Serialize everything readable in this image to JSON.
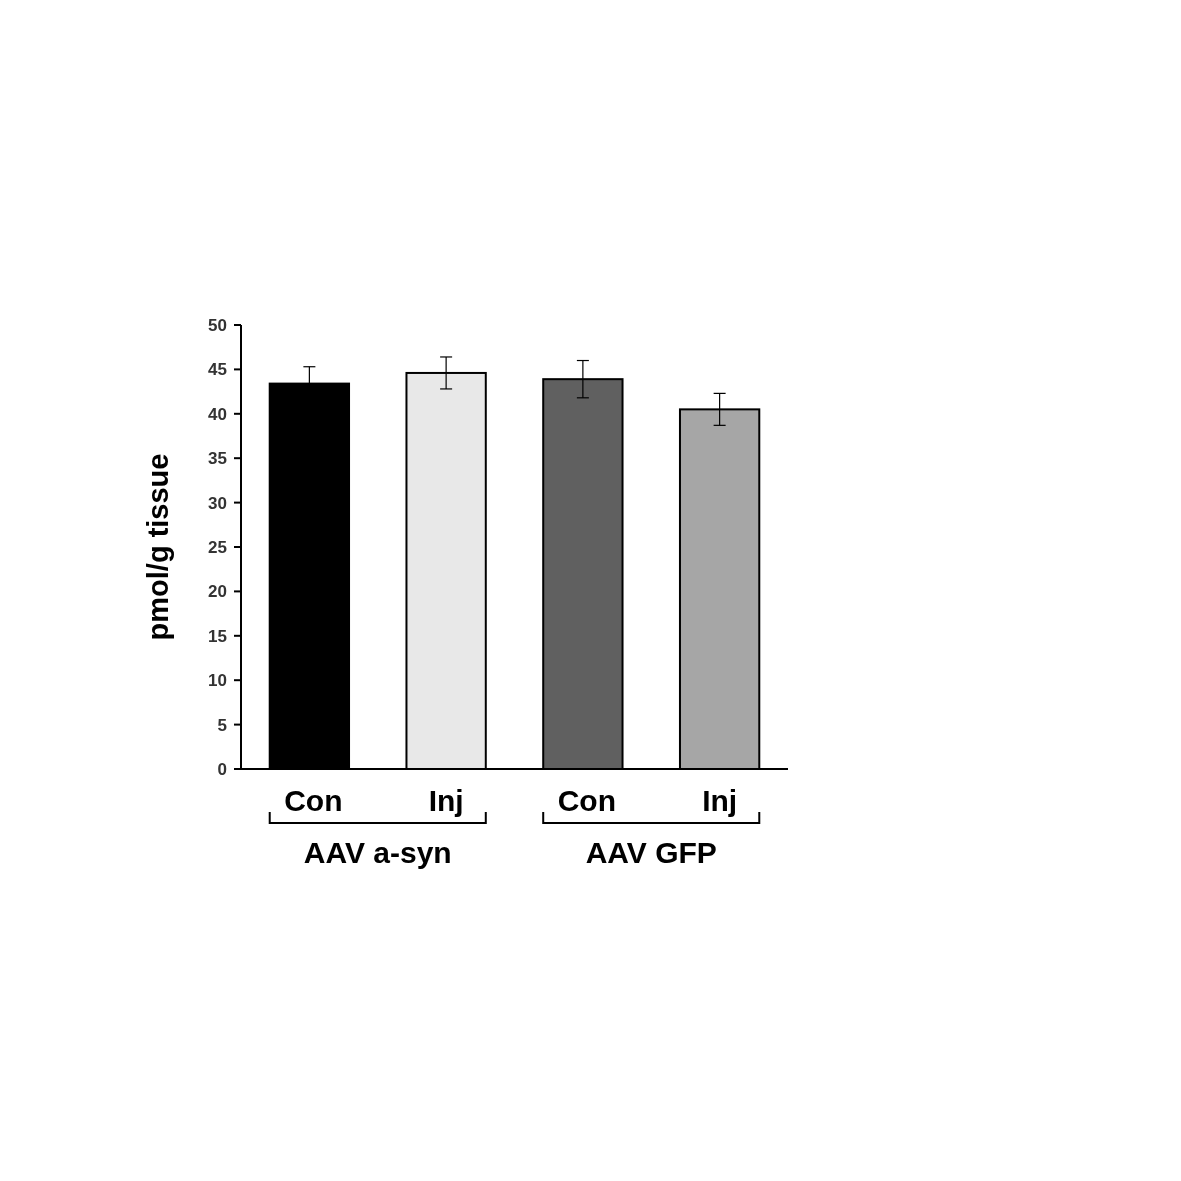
{
  "chart_data": {
    "type": "bar",
    "ylabel": "pmol/g tissue",
    "categories": [
      "Con",
      "Inj",
      "Con",
      "Inj"
    ],
    "values": [
      43.4,
      44.6,
      43.9,
      40.5
    ],
    "errors": [
      1.9,
      1.8,
      2.1,
      1.8
    ],
    "colors": [
      "#000000",
      "#e8e8e8",
      "#606060",
      "#a6a6a6"
    ],
    "ylim": [
      0,
      50
    ],
    "yticks": [
      0,
      5,
      10,
      15,
      20,
      25,
      30,
      35,
      40,
      45,
      50
    ],
    "annotations": [
      "AAV a-syn",
      "AAV GFP"
    ],
    "grid": false
  }
}
